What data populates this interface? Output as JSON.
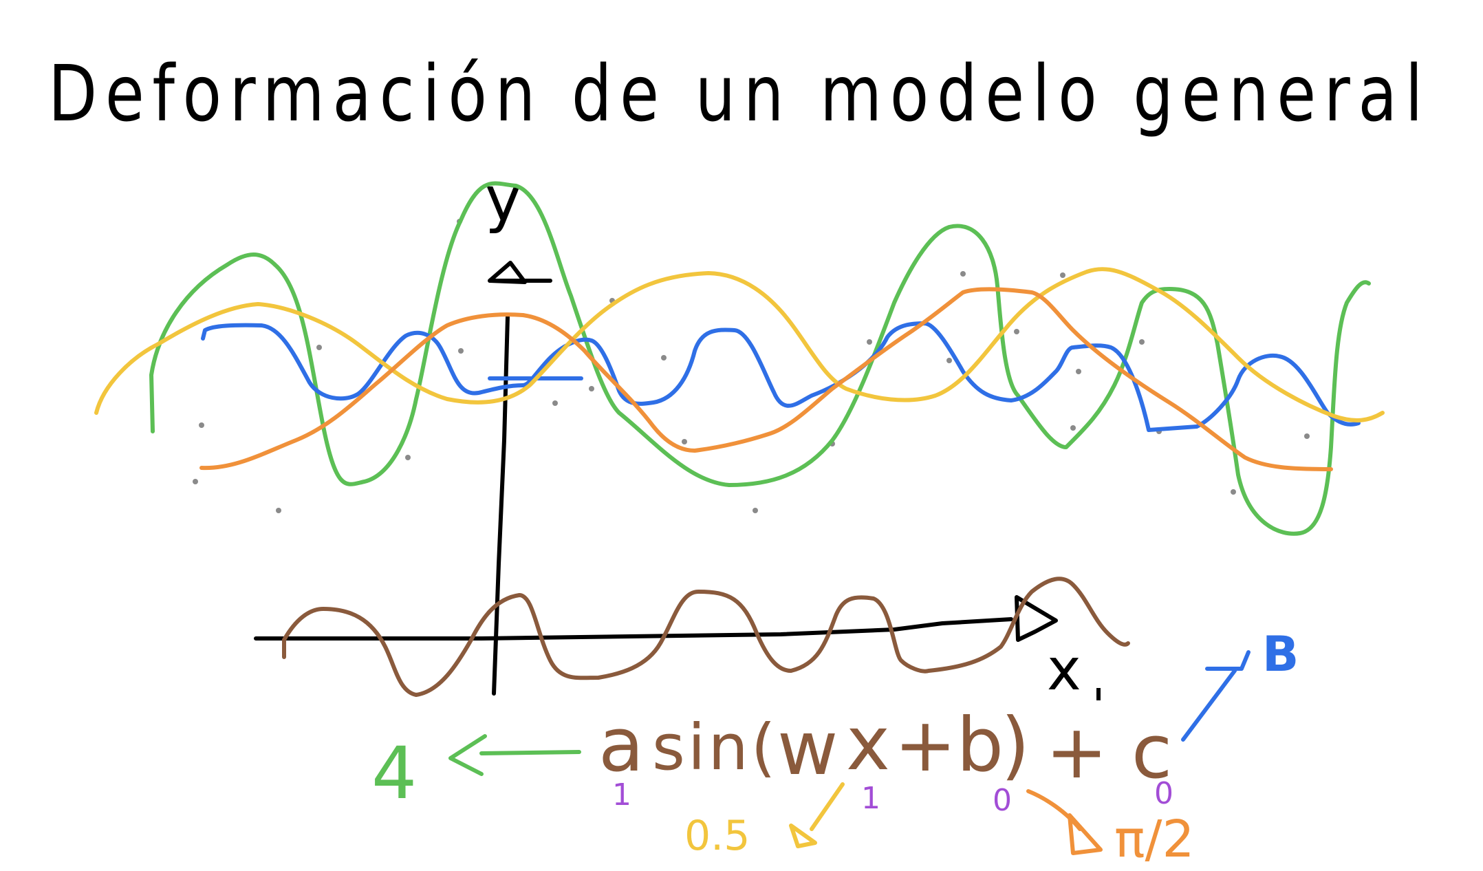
{
  "title": "Deformación de un modelo general",
  "axes": {
    "y_label": "y",
    "x_label": "x"
  },
  "formula": {
    "expression": "a sin(wx+b)+c",
    "parts": {
      "a": "a",
      "sin": "sin(",
      "w": "w",
      "x": "x",
      "plus_b": "+b",
      "close": ")",
      "plus_c": "+ c"
    }
  },
  "annotations": {
    "a_new_value": "4",
    "c_new_value": "B",
    "w_new_value": "0.5",
    "b_new_value": "π/2",
    "a_default": "1",
    "w_default": "1",
    "b_default": "0",
    "c_default": "0"
  },
  "colors": {
    "ink": "#000000",
    "green": "#5cbf55",
    "blue": "#2f6fe6",
    "yellow": "#f2c53d",
    "orange": "#f0913a",
    "brown": "#8a5a3c",
    "purple": "#a24dd6",
    "dots": "#8a8a8a"
  }
}
